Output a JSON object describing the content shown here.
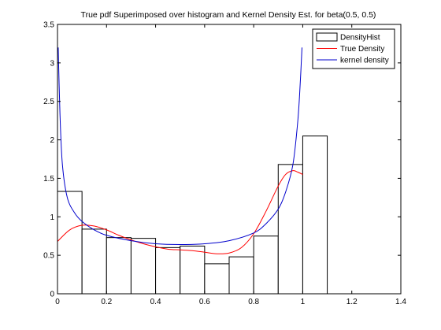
{
  "chart_data": {
    "type": "bar",
    "title": "True pdf Superimposed over histogram and Kernel Density Est. for beta(0.5, 0.5)",
    "xlabel": "",
    "ylabel": "",
    "xlim": [
      0,
      1.4
    ],
    "ylim": [
      0,
      3.5
    ],
    "x_ticks": [
      "0",
      "0.2",
      "0.4",
      "0.6",
      "0.8",
      "1",
      "1.2",
      "1.4"
    ],
    "y_ticks": [
      "0",
      "0.5",
      "1",
      "1.5",
      "2",
      "2.5",
      "3",
      "3.5"
    ],
    "grid": false,
    "legend_position": "top-right",
    "histogram": {
      "name": "DensityHist",
      "bin_edges": [
        0.0,
        0.1,
        0.2,
        0.3,
        0.4,
        0.5,
        0.6,
        0.7,
        0.8,
        0.9,
        1.0,
        1.1
      ],
      "values": [
        1.33,
        0.84,
        0.73,
        0.72,
        0.6,
        0.62,
        0.39,
        0.48,
        0.75,
        1.68,
        2.05
      ]
    },
    "series": [
      {
        "name": "True Density",
        "color": "#ff0000",
        "x": [
          0.0,
          0.05,
          0.1,
          0.15,
          0.2,
          0.25,
          0.3,
          0.35,
          0.4,
          0.45,
          0.5,
          0.55,
          0.6,
          0.65,
          0.7,
          0.75,
          0.8,
          0.85,
          0.9,
          0.93,
          0.96,
          0.98,
          1.0
        ],
        "values": [
          0.68,
          0.83,
          0.89,
          0.88,
          0.83,
          0.76,
          0.7,
          0.65,
          0.61,
          0.58,
          0.57,
          0.56,
          0.54,
          0.52,
          0.53,
          0.6,
          0.78,
          1.07,
          1.4,
          1.55,
          1.6,
          1.58,
          1.55
        ]
      },
      {
        "name": "kernel density",
        "color": "#0000cc",
        "x": [
          0.003,
          0.01,
          0.02,
          0.04,
          0.07,
          0.1,
          0.15,
          0.2,
          0.3,
          0.4,
          0.5,
          0.6,
          0.7,
          0.8,
          0.85,
          0.9,
          0.93,
          0.96,
          0.98,
          0.99,
          0.997
        ],
        "values": [
          3.2,
          2.35,
          1.68,
          1.25,
          1.05,
          0.94,
          0.83,
          0.76,
          0.69,
          0.65,
          0.64,
          0.65,
          0.69,
          0.79,
          0.91,
          1.1,
          1.32,
          1.68,
          2.25,
          2.75,
          3.2
        ]
      }
    ]
  }
}
